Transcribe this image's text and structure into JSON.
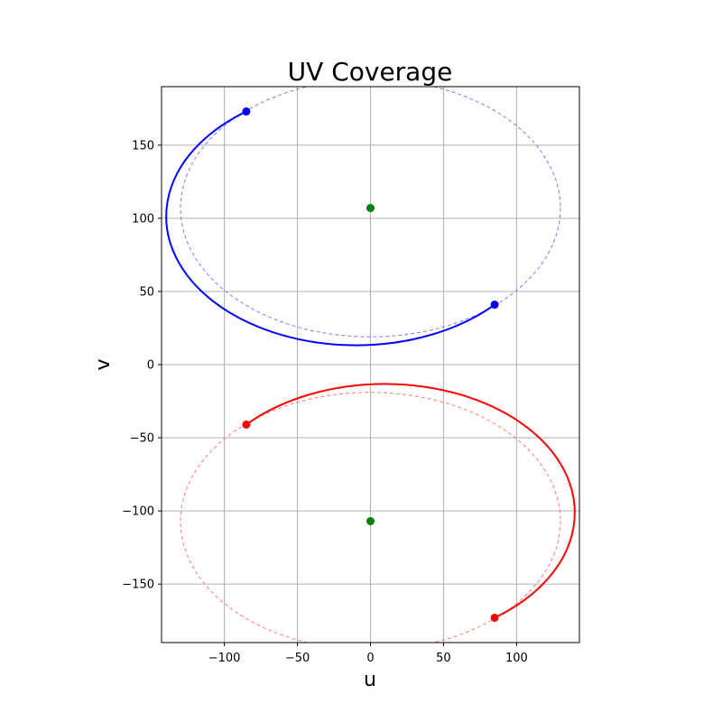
{
  "chart_data": {
    "type": "line",
    "title": "UV Coverage",
    "xlabel": "u",
    "ylabel": "v",
    "xlim": [
      -143,
      143
    ],
    "ylim": [
      -190,
      190
    ],
    "xticks": [
      -100,
      -50,
      0,
      50,
      100
    ],
    "yticks": [
      -150,
      -100,
      -50,
      0,
      50,
      100,
      150
    ],
    "xtick_labels": [
      "−100",
      "−50",
      "0",
      "50",
      "100"
    ],
    "ytick_labels": [
      "−150",
      "−100",
      "−50",
      "0",
      "50",
      "100",
      "150"
    ],
    "grid": true,
    "ellipses": [
      {
        "center": [
          0,
          107
        ],
        "semi_axes": [
          130,
          88
        ],
        "color": "#0000ff",
        "dashed_color": "#7b7bff",
        "solid_arc": {
          "start": [
            -85,
            173
          ],
          "end": [
            85,
            41
          ],
          "direction": "through_left_and_bottom"
        },
        "endpoints": [
          [
            -85,
            173
          ],
          [
            85,
            41
          ]
        ]
      },
      {
        "center": [
          0,
          -107
        ],
        "semi_axes": [
          130,
          88
        ],
        "color": "#ff0000",
        "dashed_color": "#ff7b7b",
        "solid_arc": {
          "start": [
            -85,
            -41
          ],
          "end": [
            85,
            -173
          ],
          "direction": "through_top_and_right"
        },
        "endpoints": [
          [
            -85,
            -41
          ],
          [
            85,
            -173
          ]
        ]
      }
    ],
    "center_points": {
      "color": "#008000",
      "points": [
        [
          0,
          107
        ],
        [
          0,
          -107
        ]
      ]
    }
  }
}
